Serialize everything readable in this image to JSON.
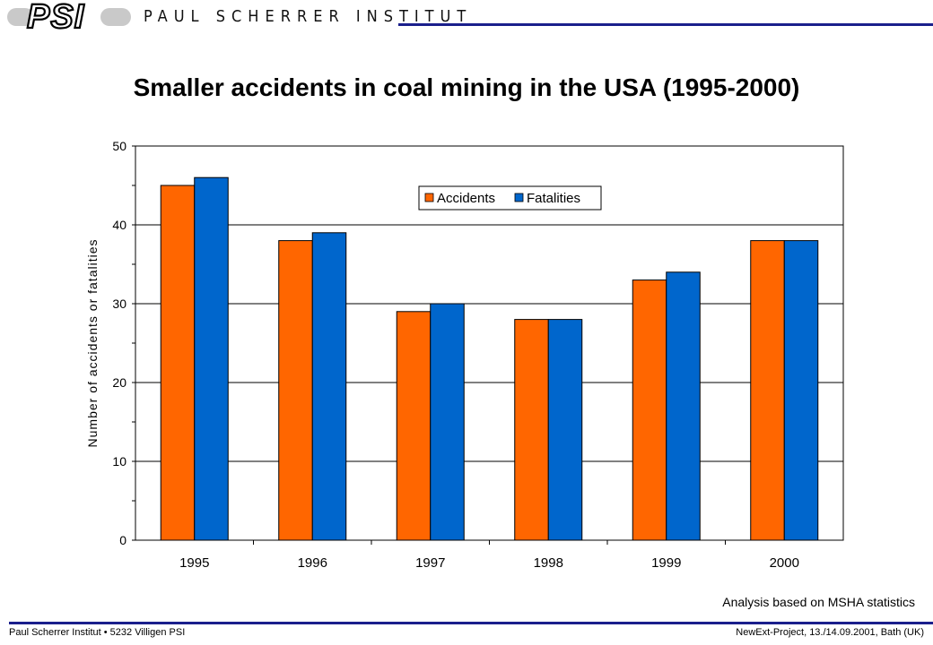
{
  "header": {
    "logo_text": "PSI",
    "institute_name": "PAUL SCHERRER INSTITUT"
  },
  "slide_title": "Smaller accidents in coal mining in the USA (1995-2000)",
  "source_note": "Analysis based on MSHA statistics",
  "footer": {
    "left": "Paul Scherrer Institut • 5232 Villigen PSI",
    "right": "NewExt-Project, 13./14.09.2001, Bath (UK)"
  },
  "colors": {
    "accidents": "#ff6600",
    "fatalities": "#0066cc",
    "rule": "#1a1f8c"
  },
  "chart_data": {
    "type": "bar",
    "categories": [
      "1995",
      "1996",
      "1997",
      "1998",
      "1999",
      "2000"
    ],
    "series": [
      {
        "name": "Accidents",
        "values": [
          45,
          38,
          29,
          28,
          33,
          38
        ]
      },
      {
        "name": "Fatalities",
        "values": [
          46,
          39,
          30,
          28,
          34,
          38
        ]
      }
    ],
    "title": "",
    "xlabel": "",
    "ylabel": "Number of accidents or fatalities",
    "ylim": [
      0,
      50
    ],
    "yticks": [
      "0",
      "10",
      "20",
      "30",
      "40",
      "50"
    ],
    "grid": true,
    "legend_position": "top-center"
  }
}
